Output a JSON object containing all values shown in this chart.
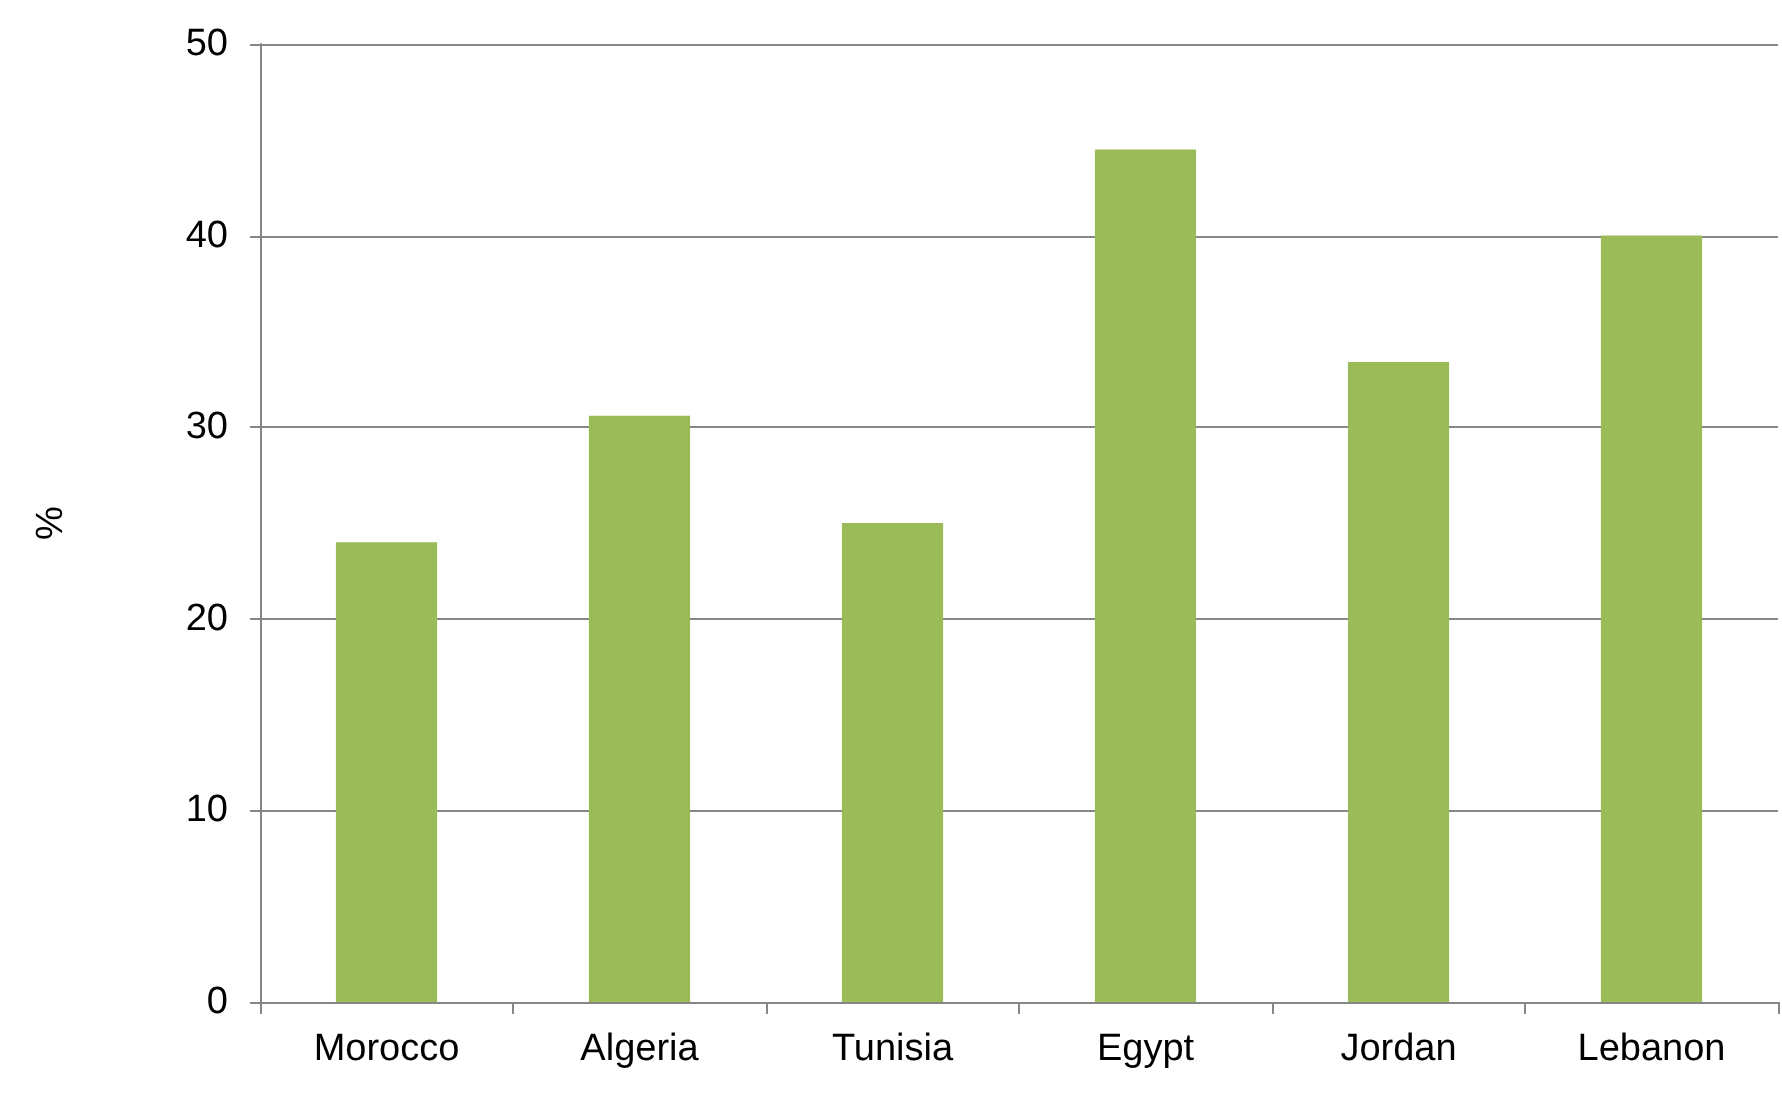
{
  "chart_data": {
    "type": "bar",
    "ylabel": "%",
    "categories": [
      "Morocco",
      "Algeria",
      "Tunisia",
      "Egypt",
      "Jordan",
      "Lebanon"
    ],
    "values": [
      24,
      30.6,
      25,
      44.5,
      33.4,
      40
    ],
    "color": "#9bbb59",
    "ylim": [
      0,
      50
    ],
    "yticks": [
      0,
      10,
      20,
      30,
      40,
      50
    ],
    "grid": "y"
  }
}
